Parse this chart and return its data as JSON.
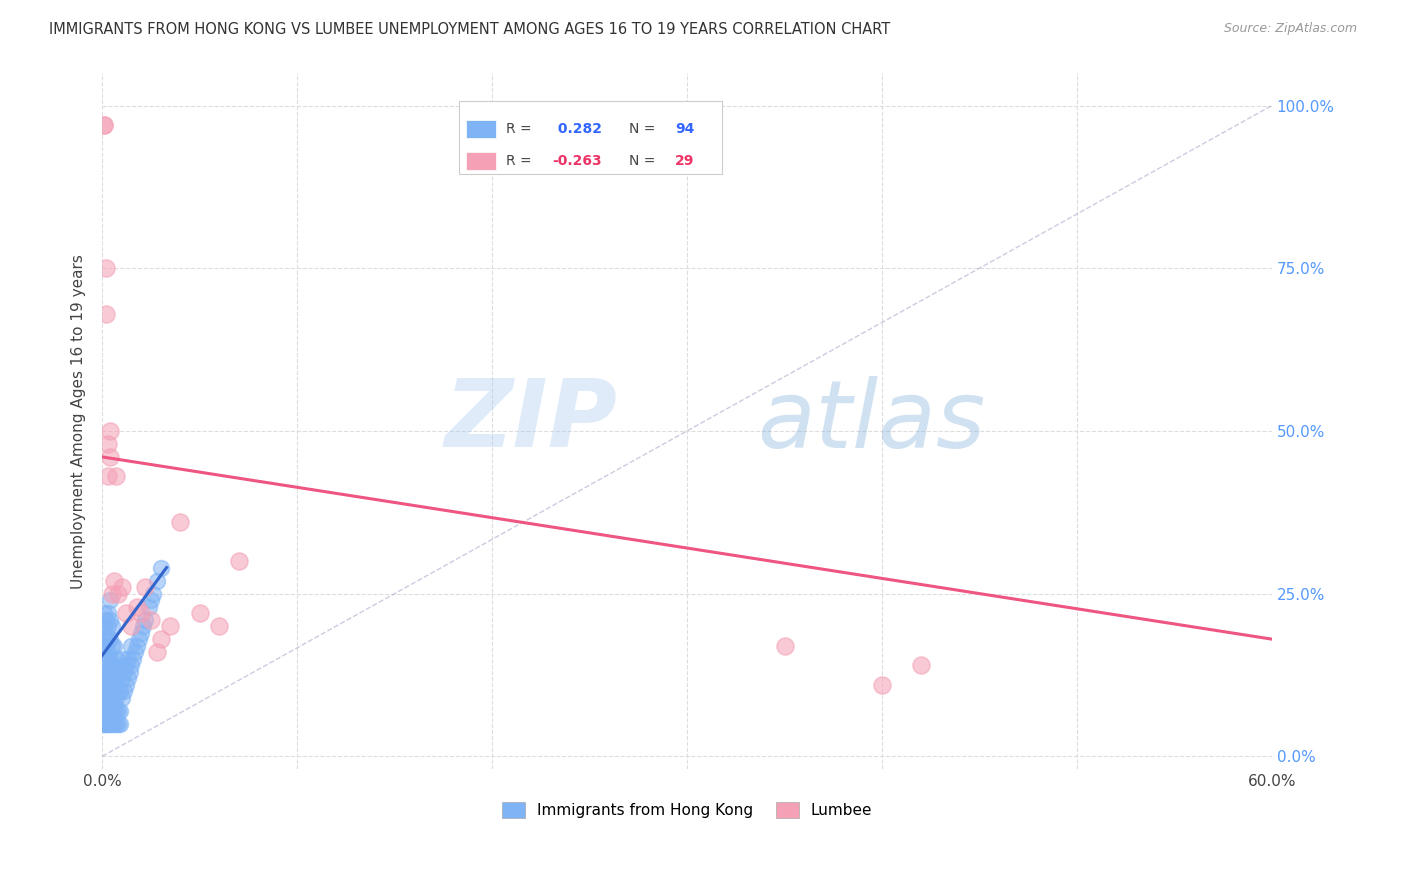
{
  "title": "IMMIGRANTS FROM HONG KONG VS LUMBEE UNEMPLOYMENT AMONG AGES 16 TO 19 YEARS CORRELATION CHART",
  "source": "Source: ZipAtlas.com",
  "ylabel": "Unemployment Among Ages 16 to 19 years",
  "xlim": [
    0.0,
    0.6
  ],
  "ylim": [
    -0.02,
    1.05
  ],
  "legend_r_blue": " 0.282",
  "legend_n_blue": "94",
  "legend_r_pink": "-0.263",
  "legend_n_pink": "29",
  "blue_color": "#7EB3F5",
  "pink_color": "#F4A0B5",
  "blue_label": "Immigrants from Hong Kong",
  "pink_label": "Lumbee",
  "watermark_zip": "ZIP",
  "watermark_atlas": "atlas",
  "blue_scatter_x": [
    0.001,
    0.001,
    0.001,
    0.001,
    0.001,
    0.001,
    0.001,
    0.001,
    0.001,
    0.001,
    0.001,
    0.001,
    0.001,
    0.001,
    0.001,
    0.002,
    0.002,
    0.002,
    0.002,
    0.002,
    0.002,
    0.002,
    0.002,
    0.002,
    0.002,
    0.003,
    0.003,
    0.003,
    0.003,
    0.003,
    0.003,
    0.003,
    0.003,
    0.003,
    0.003,
    0.004,
    0.004,
    0.004,
    0.004,
    0.004,
    0.004,
    0.004,
    0.004,
    0.004,
    0.005,
    0.005,
    0.005,
    0.005,
    0.005,
    0.005,
    0.005,
    0.005,
    0.006,
    0.006,
    0.006,
    0.006,
    0.006,
    0.006,
    0.007,
    0.007,
    0.007,
    0.007,
    0.007,
    0.008,
    0.008,
    0.008,
    0.008,
    0.009,
    0.009,
    0.009,
    0.01,
    0.01,
    0.01,
    0.011,
    0.011,
    0.012,
    0.012,
    0.013,
    0.013,
    0.014,
    0.015,
    0.015,
    0.016,
    0.017,
    0.018,
    0.019,
    0.02,
    0.021,
    0.022,
    0.024,
    0.025,
    0.026,
    0.028,
    0.03
  ],
  "blue_scatter_y": [
    0.05,
    0.08,
    0.1,
    0.12,
    0.14,
    0.16,
    0.18,
    0.2,
    0.22,
    0.05,
    0.07,
    0.09,
    0.11,
    0.13,
    0.06,
    0.08,
    0.1,
    0.12,
    0.15,
    0.17,
    0.19,
    0.21,
    0.05,
    0.07,
    0.09,
    0.06,
    0.08,
    0.11,
    0.13,
    0.16,
    0.18,
    0.2,
    0.22,
    0.05,
    0.07,
    0.06,
    0.09,
    0.12,
    0.15,
    0.18,
    0.21,
    0.24,
    0.05,
    0.07,
    0.08,
    0.11,
    0.14,
    0.17,
    0.2,
    0.05,
    0.07,
    0.09,
    0.08,
    0.11,
    0.14,
    0.17,
    0.05,
    0.07,
    0.09,
    0.12,
    0.15,
    0.05,
    0.07,
    0.1,
    0.13,
    0.05,
    0.07,
    0.1,
    0.05,
    0.07,
    0.09,
    0.12,
    0.15,
    0.1,
    0.13,
    0.11,
    0.14,
    0.12,
    0.15,
    0.13,
    0.14,
    0.17,
    0.15,
    0.16,
    0.17,
    0.18,
    0.19,
    0.2,
    0.21,
    0.23,
    0.24,
    0.25,
    0.27,
    0.29
  ],
  "pink_scatter_x": [
    0.001,
    0.001,
    0.002,
    0.002,
    0.003,
    0.003,
    0.004,
    0.004,
    0.005,
    0.006,
    0.007,
    0.008,
    0.01,
    0.012,
    0.015,
    0.018,
    0.02,
    0.022,
    0.025,
    0.028,
    0.03,
    0.035,
    0.04,
    0.05,
    0.06,
    0.07,
    0.35,
    0.4,
    0.42
  ],
  "pink_scatter_y": [
    0.97,
    0.97,
    0.75,
    0.68,
    0.48,
    0.43,
    0.5,
    0.46,
    0.25,
    0.27,
    0.43,
    0.25,
    0.26,
    0.22,
    0.2,
    0.23,
    0.22,
    0.26,
    0.21,
    0.16,
    0.18,
    0.2,
    0.36,
    0.22,
    0.2,
    0.3,
    0.17,
    0.11,
    0.14
  ],
  "blue_trend_x": [
    0.0,
    0.033
  ],
  "blue_trend_y": [
    0.155,
    0.29
  ],
  "pink_trend_x": [
    0.0,
    0.6
  ],
  "pink_trend_y": [
    0.46,
    0.18
  ],
  "diag_line_x": [
    0.0,
    0.6
  ],
  "diag_line_y": [
    0.0,
    1.0
  ],
  "xtick_positions": [
    0.0,
    0.1,
    0.2,
    0.3,
    0.4,
    0.5,
    0.6
  ],
  "ytick_positions": [
    0.0,
    0.25,
    0.5,
    0.75,
    1.0
  ],
  "ytick_labels_right": [
    "0.0%",
    "25.0%",
    "50.0%",
    "75.0%",
    "100.0%"
  ]
}
